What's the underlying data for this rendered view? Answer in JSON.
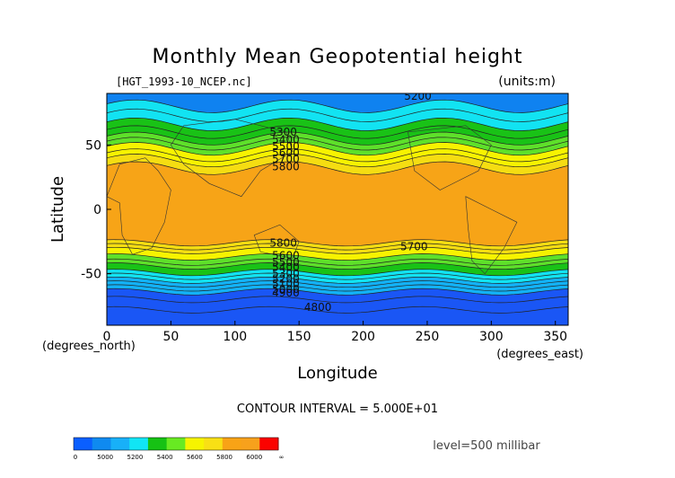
{
  "chart_data": {
    "type": "heatmap",
    "title": "Monthly Mean Geopotential height",
    "file_label": "[HGT_1993-10_NCEP.nc]",
    "units_label": "(units:m)",
    "xlabel": "Longitude",
    "ylabel": "Latitude",
    "x_unit_label": "(degrees_east)",
    "y_unit_label": "(degrees_north)",
    "xlim": [
      0,
      360
    ],
    "ylim": [
      -90,
      90
    ],
    "x_ticks": [
      0,
      50,
      100,
      150,
      200,
      250,
      300,
      350
    ],
    "y_ticks": [
      50,
      0,
      -50
    ],
    "contour_interval_text": "CONTOUR INTERVAL = 5.000E+01",
    "level_text": "level=500 millibar",
    "contour_labels": [
      {
        "text": "5200",
        "x": 232,
        "y": 88
      },
      {
        "text": "5300",
        "x": 127,
        "y": 60
      },
      {
        "text": "5400",
        "x": 129,
        "y": 54
      },
      {
        "text": "5500",
        "x": 129,
        "y": 49
      },
      {
        "text": "5600",
        "x": 129,
        "y": 44
      },
      {
        "text": "5700",
        "x": 129,
        "y": 39
      },
      {
        "text": "5800",
        "x": 129,
        "y": 33
      },
      {
        "text": "5800",
        "x": 127,
        "y": -26
      },
      {
        "text": "5700",
        "x": 229,
        "y": -29
      },
      {
        "text": "5600",
        "x": 129,
        "y": -36
      },
      {
        "text": "5500",
        "x": 129,
        "y": -41
      },
      {
        "text": "5400",
        "x": 129,
        "y": -45
      },
      {
        "text": "5300",
        "x": 129,
        "y": -50
      },
      {
        "text": "5200",
        "x": 129,
        "y": -54
      },
      {
        "text": "5100",
        "x": 129,
        "y": -58
      },
      {
        "text": "5000",
        "x": 129,
        "y": -62
      },
      {
        "text": "4900",
        "x": 129,
        "y": -65
      },
      {
        "text": "4800",
        "x": 154,
        "y": -76
      }
    ],
    "colorbar": {
      "colors": [
        "#0a5fff",
        "#0f8af0",
        "#18b0f8",
        "#11e5f5",
        "#16c214",
        "#68ea22",
        "#f6f400",
        "#f8e015",
        "#f8a316",
        "#f7a11c",
        "#fb0200"
      ],
      "tick_labels": [
        "0",
        "5000",
        "5200",
        "5400",
        "5600",
        "5800",
        "6000",
        "∞"
      ]
    },
    "field_colors": {
      "blue_dark": "#1a56f5",
      "blue_mid": "#0f82f0",
      "blue_light": "#13b2f7",
      "cyan": "#12e3f2",
      "green_dark": "#19c216",
      "green_light": "#5ee02a",
      "yellow": "#f7f300",
      "yellow_deep": "#f5dd12",
      "orange": "#f7a417"
    }
  }
}
